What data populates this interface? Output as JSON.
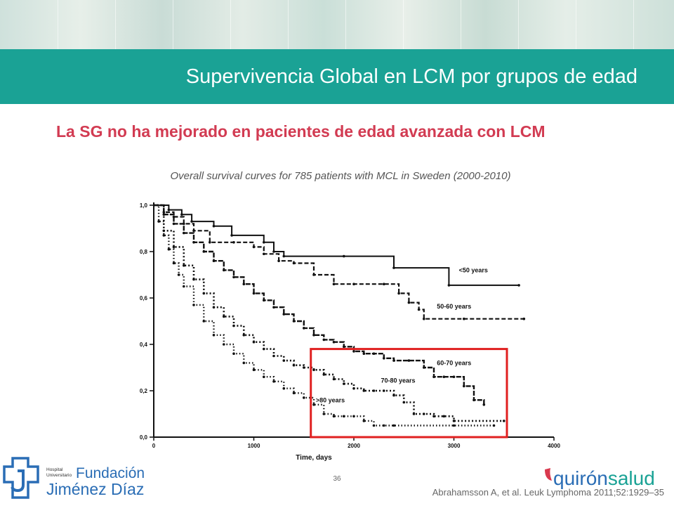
{
  "header": {
    "title": "Supervivencia Global en LCM por grupos de edad"
  },
  "subtitle": "La SG no ha mejorado en pacientes de edad avanzada con LCM",
  "caption": "Overall survival curves for 785 patients with MCL in Sweden (2000-2010)",
  "footer": {
    "page_number": "36",
    "reference": "Abrahamsson A, et al. Leuk Lymphoma 2011;52:1929–35"
  },
  "logo_left": {
    "hospital": "Hospital",
    "universitario": "Universitario",
    "line1": "Fundación",
    "line2": "Jiménez Díaz"
  },
  "logo_right": {
    "text_a": "quirón",
    "text_b": "salud"
  },
  "colors": {
    "title_bar": "#1aa295",
    "subtitle": "#d23b52",
    "highlight_box": "#e02020",
    "logo_blue": "#2a6db5",
    "logo_red": "#d9394e"
  },
  "chart_data": {
    "type": "line",
    "title": "",
    "xlabel": "Time, days",
    "ylabel": "",
    "xlim": [
      0,
      4000
    ],
    "ylim": [
      0,
      1
    ],
    "x_ticks": [
      "0",
      "1000",
      "2000",
      "3000",
      "4000"
    ],
    "y_ticks": [
      "0,0",
      "0,2",
      "0,4",
      "0,6",
      "0,8",
      "1,0"
    ],
    "highlight_box": {
      "x": [
        1570,
        3530
      ],
      "y": [
        0.0,
        0.38
      ]
    },
    "series": [
      {
        "name": "<50 years",
        "label_at": [
          3050,
          0.71
        ],
        "x": [
          0,
          150,
          280,
          380,
          600,
          780,
          1100,
          1200,
          1300,
          1900,
          2400,
          2950,
          3650
        ],
        "y": [
          1.0,
          0.98,
          0.96,
          0.93,
          0.91,
          0.87,
          0.84,
          0.8,
          0.78,
          0.78,
          0.73,
          0.655,
          0.655
        ]
      },
      {
        "name": "50-60 years",
        "label_at": [
          2830,
          0.555
        ],
        "x": [
          0,
          100,
          200,
          300,
          400,
          560,
          800,
          1000,
          1100,
          1250,
          1400,
          1600,
          1800,
          2000,
          2300,
          2450,
          2550,
          2650,
          2700,
          3100,
          3700
        ],
        "y": [
          1.0,
          0.97,
          0.95,
          0.92,
          0.89,
          0.84,
          0.84,
          0.82,
          0.79,
          0.76,
          0.75,
          0.7,
          0.66,
          0.66,
          0.66,
          0.62,
          0.58,
          0.55,
          0.51,
          0.51,
          0.51
        ]
      },
      {
        "name": "60-70 years",
        "label_at": [
          2830,
          0.31
        ],
        "x": [
          0,
          100,
          200,
          300,
          400,
          500,
          600,
          700,
          800,
          900,
          1000,
          1100,
          1200,
          1300,
          1400,
          1500,
          1600,
          1700,
          1800,
          1900,
          2000,
          2100,
          2200,
          2300,
          2400,
          2550,
          2700,
          2800,
          2900,
          3000,
          3100,
          3200,
          3300
        ],
        "y": [
          1.0,
          0.96,
          0.92,
          0.88,
          0.84,
          0.8,
          0.76,
          0.72,
          0.69,
          0.66,
          0.62,
          0.59,
          0.56,
          0.53,
          0.5,
          0.47,
          0.44,
          0.42,
          0.41,
          0.39,
          0.37,
          0.36,
          0.36,
          0.34,
          0.33,
          0.33,
          0.3,
          0.26,
          0.26,
          0.26,
          0.22,
          0.16,
          0.14
        ]
      },
      {
        "name": "70-80 years",
        "label_at": [
          2270,
          0.235
        ],
        "x": [
          0,
          100,
          200,
          300,
          400,
          500,
          600,
          700,
          800,
          900,
          1000,
          1100,
          1200,
          1300,
          1400,
          1500,
          1600,
          1700,
          1800,
          1900,
          2000,
          2100,
          2200,
          2300,
          2400,
          2500,
          2600,
          2700,
          2800,
          2900,
          3000,
          3500
        ],
        "y": [
          1.0,
          0.89,
          0.82,
          0.74,
          0.68,
          0.62,
          0.56,
          0.52,
          0.48,
          0.44,
          0.41,
          0.38,
          0.35,
          0.33,
          0.31,
          0.3,
          0.29,
          0.27,
          0.25,
          0.23,
          0.21,
          0.2,
          0.2,
          0.2,
          0.18,
          0.15,
          0.1,
          0.1,
          0.09,
          0.09,
          0.07,
          0.07
        ]
      },
      {
        "name": ">80 years",
        "label_at": [
          1620,
          0.15
        ],
        "x": [
          0,
          50,
          100,
          150,
          200,
          250,
          300,
          400,
          500,
          600,
          700,
          800,
          900,
          1000,
          1100,
          1200,
          1300,
          1400,
          1500,
          1600,
          1700,
          1800,
          1900,
          2000,
          2100,
          2200,
          2300,
          2400,
          3000,
          3400
        ],
        "y": [
          1.0,
          0.93,
          0.87,
          0.81,
          0.75,
          0.7,
          0.65,
          0.57,
          0.5,
          0.44,
          0.4,
          0.36,
          0.32,
          0.29,
          0.26,
          0.24,
          0.21,
          0.19,
          0.17,
          0.14,
          0.1,
          0.09,
          0.09,
          0.09,
          0.07,
          0.05,
          0.05,
          0.05,
          0.05,
          0.05
        ]
      }
    ]
  }
}
